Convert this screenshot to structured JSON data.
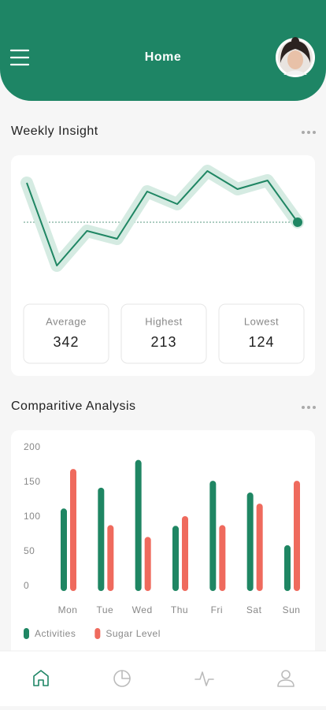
{
  "header": {
    "title": "Home"
  },
  "weekly": {
    "title": "Weekly Insight",
    "stats": [
      {
        "label": "Average",
        "value": "342"
      },
      {
        "label": "Highest",
        "value": "213"
      },
      {
        "label": "Lowest",
        "value": "124"
      }
    ]
  },
  "comparison": {
    "title": "Comparitive Analysis"
  },
  "chart_data": [
    {
      "type": "line",
      "values": [
        118,
        13,
        57,
        47,
        107,
        91,
        133,
        110,
        121,
        68
      ],
      "ylim": [
        0,
        150
      ],
      "color": "#1f8663"
    },
    {
      "type": "bar",
      "categories": [
        "Mon",
        "Tue",
        "Wed",
        "Thu",
        "Fri",
        "Sat",
        "Sun"
      ],
      "series": [
        {
          "name": "Activities",
          "color": "#1f8663",
          "values": [
            119,
            149,
            189,
            94,
            159,
            142,
            66
          ]
        },
        {
          "name": "Sugar Level",
          "color": "#ef6a5d",
          "values": [
            176,
            95,
            78,
            108,
            95,
            126,
            159
          ]
        }
      ],
      "ylim": [
        0,
        200
      ],
      "yticks": [
        0,
        50,
        100,
        150,
        200
      ]
    }
  ]
}
